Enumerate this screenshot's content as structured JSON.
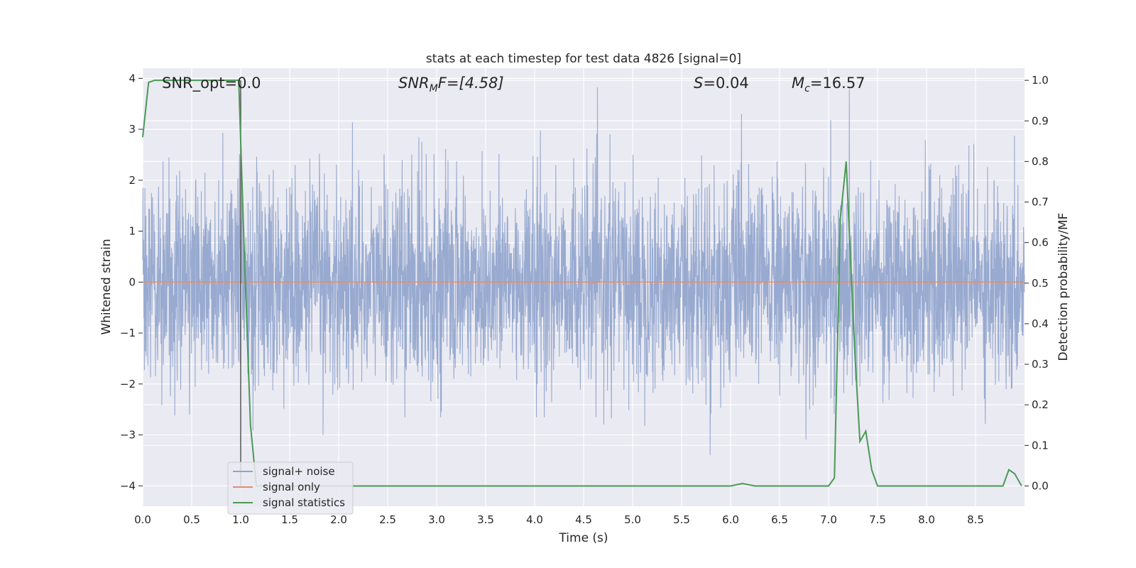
{
  "chart_data": {
    "type": "line",
    "title": "stats at each timestep for test data 4826 [signal=0]",
    "xlabel": "Time (s)",
    "ylabel": "Whitened strain",
    "y2label": "Detection probability/MF",
    "xlim": [
      0.0,
      9.0
    ],
    "ylim": [
      -4.4,
      4.2
    ],
    "y2lim": [
      -0.05,
      1.03
    ],
    "xticks": [
      "0.0",
      "0.5",
      "1.0",
      "1.5",
      "2.0",
      "2.5",
      "3.0",
      "3.5",
      "4.0",
      "4.5",
      "5.0",
      "5.5",
      "6.0",
      "6.5",
      "7.0",
      "7.5",
      "8.0",
      "8.5"
    ],
    "yticks": [
      "4",
      "3",
      "2",
      "1",
      "0",
      "−1",
      "−2",
      "−3",
      "−4"
    ],
    "y2ticks": [
      "1.0",
      "0.9",
      "0.8",
      "0.7",
      "0.6",
      "0.5",
      "0.4",
      "0.3",
      "0.2",
      "0.1",
      "0.0"
    ],
    "grid": true,
    "legend_position": "lower-left",
    "annotations": {
      "snr_opt": "SNR_opt=0.0",
      "snr_mf_symbol": "SNR",
      "snr_mf_sub": "M",
      "snr_mf_rest": "F=[4.58]",
      "s_symbol": "S",
      "s_rest": "=0.04",
      "mc_symbol": "M",
      "mc_sub": "c",
      "mc_rest": "=16.57"
    },
    "vertical_marker_x": 1.0,
    "series": [
      {
        "name": "signal+ noise",
        "axis": "left",
        "color": "#8fa3cc",
        "description_values": "white noise, typical |y| ≤ 2.5, peaks near ±3.9",
        "noise_sigma": 1.0,
        "noise_range": [
          -4.0,
          4.0
        ]
      },
      {
        "name": "signal only",
        "axis": "left",
        "color": "#e38c6b",
        "x": [
          0.0,
          9.0
        ],
        "y": [
          0.0,
          0.0
        ]
      },
      {
        "name": "signal statistics",
        "axis": "right",
        "color": "#4a9a55",
        "x": [
          0.0,
          0.06,
          0.12,
          0.2,
          0.3,
          0.5,
          0.7,
          0.9,
          0.98,
          1.04,
          1.1,
          1.16,
          1.2,
          6.0,
          6.12,
          6.25,
          7.0,
          7.06,
          7.12,
          7.18,
          7.22,
          7.27,
          7.32,
          7.38,
          7.44,
          7.5,
          8.0,
          8.78,
          8.84,
          8.9,
          8.97
        ],
        "y": [
          0.86,
          0.995,
          1.0,
          1.0,
          1.0,
          1.0,
          1.0,
          1.0,
          1.0,
          0.55,
          0.15,
          0.0,
          0.0,
          0.0,
          0.006,
          0.0,
          0.0,
          0.02,
          0.66,
          0.8,
          0.58,
          0.32,
          0.11,
          0.135,
          0.04,
          0.0,
          0.0,
          0.0,
          0.04,
          0.03,
          0.0
        ]
      }
    ]
  }
}
